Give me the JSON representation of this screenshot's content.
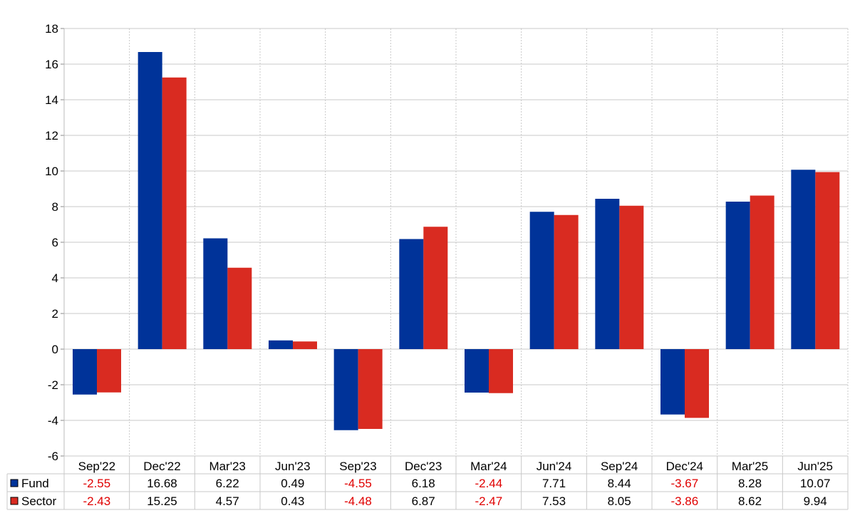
{
  "chart_data": {
    "type": "bar",
    "categories": [
      "Sep'22",
      "Dec'22",
      "Mar'23",
      "Jun'23",
      "Sep'23",
      "Dec'23",
      "Mar'24",
      "Jun'24",
      "Sep'24",
      "Dec'24",
      "Mar'25",
      "Jun'25"
    ],
    "series": [
      {
        "name": "Fund",
        "color": "#003399",
        "values": [
          -2.55,
          16.68,
          6.22,
          0.49,
          -4.55,
          6.18,
          -2.44,
          7.71,
          8.44,
          -3.67,
          8.28,
          10.07
        ]
      },
      {
        "name": "Sector",
        "color": "#d92b21",
        "values": [
          -2.43,
          15.25,
          4.57,
          0.43,
          -4.48,
          6.87,
          -2.47,
          7.53,
          8.05,
          -3.86,
          8.62,
          9.94
        ]
      }
    ],
    "ylim": [
      -6,
      18
    ],
    "yticks": [
      -6,
      -4,
      -2,
      0,
      2,
      4,
      6,
      8,
      10,
      12,
      14,
      16,
      18
    ],
    "grid": true,
    "data_table": true,
    "negative_value_color": "#e00000"
  }
}
